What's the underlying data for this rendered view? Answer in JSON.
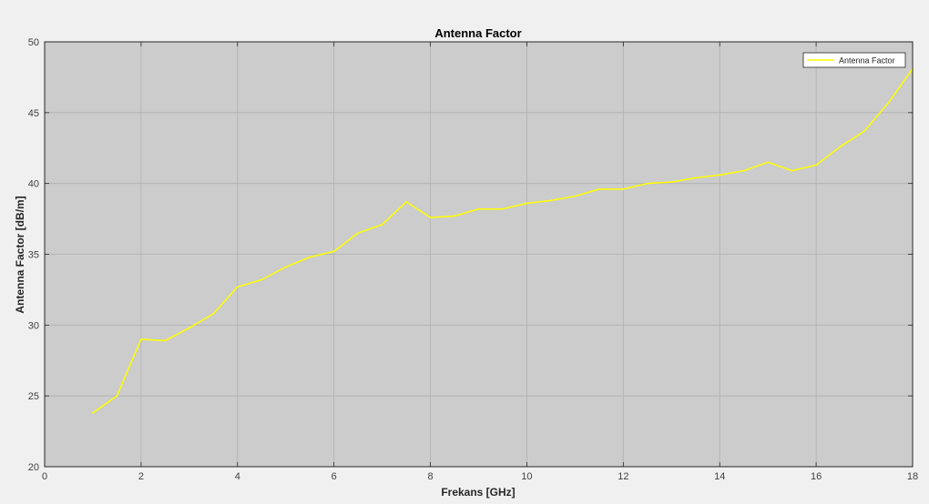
{
  "chart_data": {
    "type": "line",
    "title": "Antenna Factor",
    "xlabel": "Frekans [GHz]",
    "ylabel": "Antenna Factor [dB/m]",
    "xlim": [
      0,
      18
    ],
    "ylim": [
      20,
      50
    ],
    "xticks": [
      0,
      2,
      4,
      6,
      8,
      10,
      12,
      14,
      16,
      18
    ],
    "yticks": [
      20,
      25,
      30,
      35,
      40,
      45,
      50
    ],
    "grid": true,
    "legend_position": "top-right",
    "colors": {
      "figure_background": "#f0f0f0",
      "plot_background": "#cccccc",
      "grid": "#b0b0b0",
      "axes": "#262626",
      "series": "#ffff00",
      "legend_background": "#ffffff"
    },
    "series": [
      {
        "name": "Antenna Factor",
        "color": "#ffff00",
        "x": [
          1,
          1.5,
          2,
          2.5,
          3,
          3.5,
          4,
          4.5,
          5,
          5.5,
          6,
          6.5,
          7,
          7.5,
          8,
          8.5,
          9,
          9.5,
          10,
          10.5,
          11,
          11.5,
          12,
          12.5,
          13,
          13.5,
          14,
          14.5,
          15,
          15.5,
          16,
          16.5,
          17,
          17.5,
          18
        ],
        "y": [
          23.8,
          25.0,
          29.0,
          28.9,
          29.8,
          30.8,
          32.7,
          33.2,
          34.1,
          34.8,
          35.2,
          36.5,
          37.1,
          38.7,
          37.6,
          37.7,
          38.2,
          38.2,
          38.6,
          38.8,
          39.1,
          39.6,
          39.6,
          40.0,
          40.1,
          40.4,
          40.6,
          40.9,
          41.5,
          40.9,
          41.3,
          42.6,
          43.7,
          45.7,
          48.1
        ]
      }
    ]
  }
}
